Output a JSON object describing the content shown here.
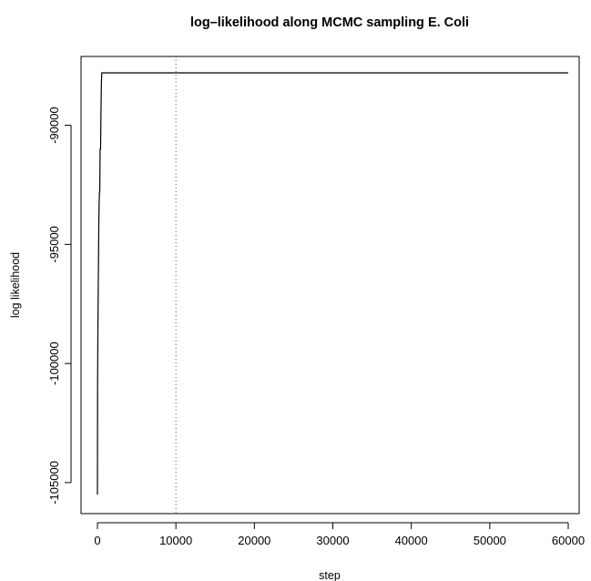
{
  "chart_data": {
    "type": "line",
    "title": "log–likelihood along MCMC sampling E. Coli",
    "xlabel": "step",
    "ylabel": "log likelihood",
    "xlim": [
      0,
      60000
    ],
    "ylim": [
      -105500,
      -87800
    ],
    "xticks": [
      0,
      10000,
      20000,
      30000,
      40000,
      50000,
      60000
    ],
    "xtick_labels": [
      "0",
      "10000",
      "20000",
      "30000",
      "40000",
      "50000",
      "60000"
    ],
    "yticks": [
      -105000,
      -100000,
      -95000,
      -90000
    ],
    "ytick_labels": [
      "-105000",
      "-100000",
      "-95000",
      "-90000"
    ],
    "grid": false,
    "legend": "none",
    "reference_line": {
      "orientation": "vertical",
      "x": 10000,
      "style": "dotted"
    },
    "series": [
      {
        "x": [
          0,
          20,
          60,
          100,
          140,
          180,
          220,
          260,
          300,
          340,
          400,
          450,
          500,
          550,
          600,
          60000
        ],
        "y": [
          -105500,
          -101000,
          -98500,
          -97000,
          -95500,
          -94000,
          -93200,
          -92800,
          -92800,
          -91000,
          -91000,
          -89500,
          -88300,
          -87800,
          -87800,
          -87800
        ]
      }
    ]
  }
}
